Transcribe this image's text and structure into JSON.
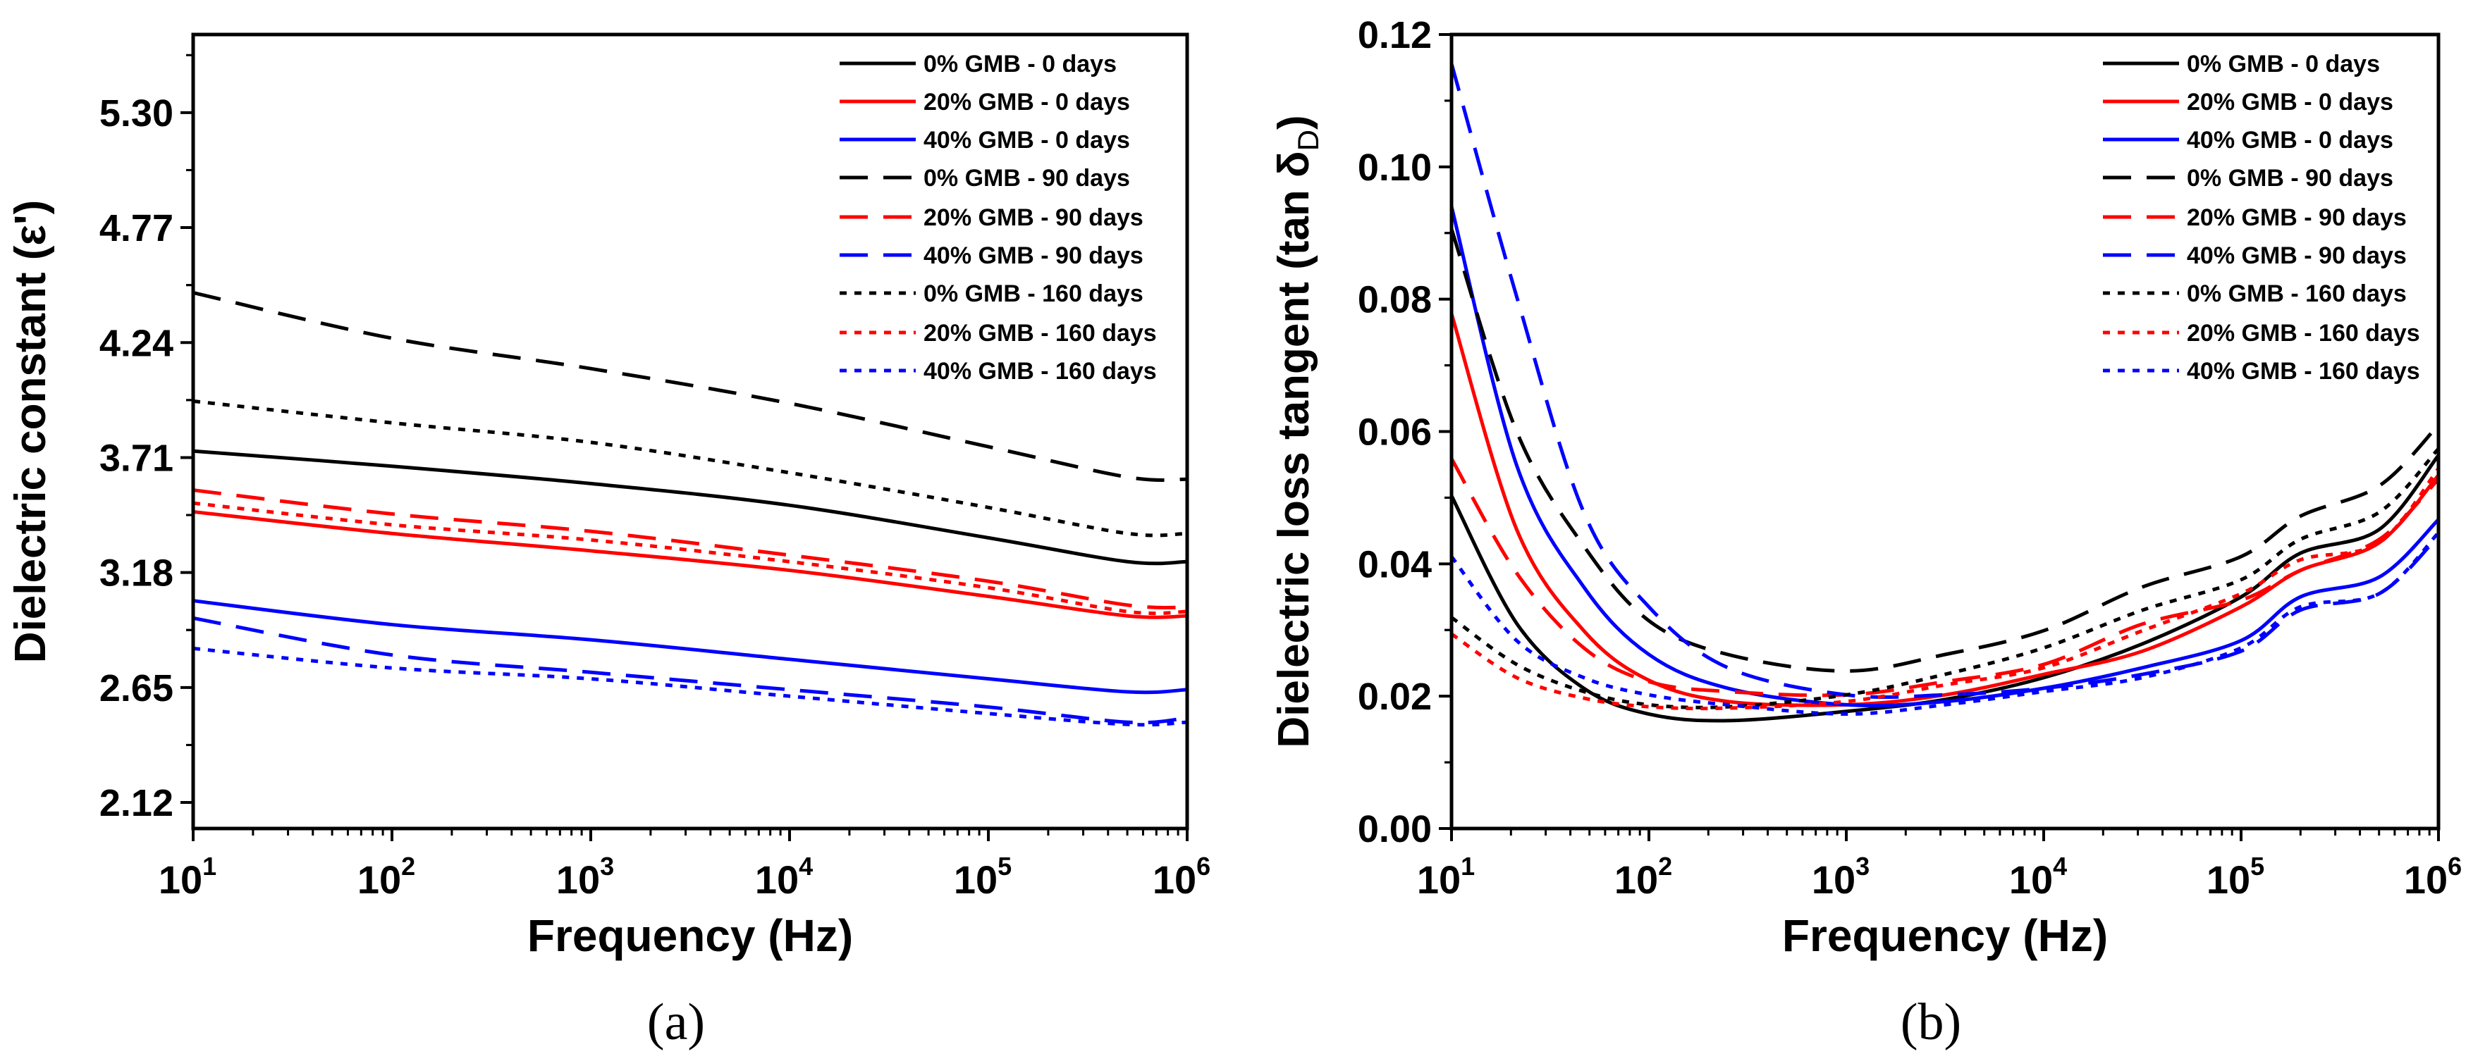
{
  "legend": [
    {
      "label": "0% GMB - 0 days",
      "color": "#000000",
      "style": "solid"
    },
    {
      "label": "20% GMB - 0 days",
      "color": "#ff0000",
      "style": "solid"
    },
    {
      "label": "40% GMB - 0 days",
      "color": "#0000ff",
      "style": "solid"
    },
    {
      "label": "0% GMB - 90 days",
      "color": "#000000",
      "style": "dash"
    },
    {
      "label": "20% GMB - 90 days",
      "color": "#ff0000",
      "style": "dash"
    },
    {
      "label": "40% GMB - 90 days",
      "color": "#0000ff",
      "style": "dash"
    },
    {
      "label": "0% GMB - 160 days",
      "color": "#000000",
      "style": "dot"
    },
    {
      "label": "20% GMB - 160 days",
      "color": "#ff0000",
      "style": "dot"
    },
    {
      "label": "40% GMB - 160 days",
      "color": "#0000ff",
      "style": "dot"
    }
  ],
  "chart_data": [
    {
      "type": "line",
      "panel_label": "(a)",
      "xlabel": "Frequency (Hz)",
      "ylabel": "Dielectric constant (ε')",
      "xscale": "log",
      "xlim": [
        10,
        1000000
      ],
      "xticks": [
        "10",
        "10",
        "10",
        "10",
        "10",
        "10"
      ],
      "xtick_exponents": [
        "1",
        "2",
        "3",
        "4",
        "5",
        "6"
      ],
      "ylim": [
        2.0,
        5.66
      ],
      "yticks": [
        "2.12",
        "2.65",
        "3.18",
        "3.71",
        "4.24",
        "4.77",
        "5.30"
      ],
      "ytick_values": [
        2.12,
        2.65,
        3.18,
        3.71,
        4.24,
        4.77,
        5.3
      ],
      "legend_position": "top-right",
      "log_x": [
        1,
        2,
        3,
        4,
        5,
        5.7,
        6
      ],
      "series": [
        {
          "name": "0% GMB - 0 days",
          "values": [
            3.74,
            3.67,
            3.59,
            3.49,
            3.34,
            3.23,
            3.23
          ]
        },
        {
          "name": "20% GMB - 0 days",
          "values": [
            3.46,
            3.36,
            3.28,
            3.19,
            3.07,
            2.98,
            2.98
          ]
        },
        {
          "name": "40% GMB - 0 days",
          "values": [
            3.05,
            2.94,
            2.87,
            2.78,
            2.69,
            2.63,
            2.64
          ]
        },
        {
          "name": "0% GMB - 90 days",
          "values": [
            4.47,
            4.26,
            4.12,
            3.96,
            3.76,
            3.62,
            3.61
          ]
        },
        {
          "name": "20% GMB - 90 days",
          "values": [
            3.56,
            3.45,
            3.37,
            3.26,
            3.14,
            3.03,
            3.02
          ]
        },
        {
          "name": "40% GMB - 90 days",
          "values": [
            2.97,
            2.8,
            2.72,
            2.64,
            2.56,
            2.49,
            2.51
          ]
        },
        {
          "name": "0% GMB - 160 days",
          "values": [
            3.97,
            3.87,
            3.78,
            3.64,
            3.48,
            3.36,
            3.36
          ]
        },
        {
          "name": "20% GMB - 160 days",
          "values": [
            3.5,
            3.4,
            3.33,
            3.23,
            3.11,
            3.0,
            3.0
          ]
        },
        {
          "name": "40% GMB - 160 days",
          "values": [
            2.83,
            2.74,
            2.69,
            2.61,
            2.53,
            2.48,
            2.49
          ]
        }
      ]
    },
    {
      "type": "line",
      "panel_label": "(b)",
      "xlabel": "Frequency (Hz)",
      "ylabel": "Dielectric loss tangent (tan δ",
      "ylabel_sub": "D",
      "ylabel_end": ")",
      "xscale": "log",
      "xlim": [
        10,
        1000000
      ],
      "xticks": [
        "10",
        "10",
        "10",
        "10",
        "10",
        "10"
      ],
      "xtick_exponents": [
        "1",
        "2",
        "3",
        "4",
        "5",
        "6"
      ],
      "ylim": [
        0,
        0.12
      ],
      "yticks": [
        "0.00",
        "0.02",
        "0.04",
        "0.06",
        "0.08",
        "0.10",
        "0.12"
      ],
      "ytick_values": [
        0,
        0.02,
        0.04,
        0.06,
        0.08,
        0.1,
        0.12
      ],
      "legend_position": "top-right",
      "log_x": [
        1,
        1.33,
        1.67,
        2,
        2.4,
        3,
        3.5,
        4,
        4.5,
        5,
        5.3,
        5.7,
        6
      ],
      "series": [
        {
          "name": "0% GMB - 0 days",
          "values": [
            0.0503,
            0.031,
            0.0212,
            0.0173,
            0.0163,
            0.0177,
            0.0195,
            0.0228,
            0.0279,
            0.035,
            0.0416,
            0.0452,
            0.0564
          ]
        },
        {
          "name": "20% GMB - 0 days",
          "values": [
            0.0778,
            0.0452,
            0.0299,
            0.0224,
            0.0192,
            0.0187,
            0.0202,
            0.0233,
            0.0268,
            0.0335,
            0.039,
            0.0432,
            0.0534
          ]
        },
        {
          "name": "40% GMB - 0 days",
          "values": [
            0.094,
            0.0549,
            0.0365,
            0.0263,
            0.0212,
            0.0187,
            0.0192,
            0.0212,
            0.0243,
            0.0284,
            0.035,
            0.038,
            0.0467
          ]
        },
        {
          "name": "0% GMB - 90 days",
          "values": [
            0.0906,
            0.06,
            0.0427,
            0.0314,
            0.0263,
            0.0238,
            0.0263,
            0.0299,
            0.0365,
            0.0411,
            0.0472,
            0.0518,
            0.061
          ]
        },
        {
          "name": "20% GMB - 90 days",
          "values": [
            0.0559,
            0.0386,
            0.0273,
            0.0222,
            0.0207,
            0.0202,
            0.0222,
            0.0248,
            0.0309,
            0.0345,
            0.039,
            0.0437,
            0.0528
          ]
        },
        {
          "name": "40% GMB - 90 days",
          "values": [
            0.1156,
            0.0804,
            0.0478,
            0.0335,
            0.0243,
            0.0202,
            0.0202,
            0.0212,
            0.0233,
            0.0268,
            0.033,
            0.0355,
            0.0442
          ]
        },
        {
          "name": "0% GMB - 160 days",
          "values": [
            0.0319,
            0.0248,
            0.0207,
            0.0187,
            0.0184,
            0.0202,
            0.0233,
            0.0273,
            0.033,
            0.0376,
            0.0437,
            0.0478,
            0.0574
          ]
        },
        {
          "name": "20% GMB - 160 days",
          "values": [
            0.0294,
            0.0228,
            0.0197,
            0.0184,
            0.0182,
            0.0192,
            0.0217,
            0.0243,
            0.0299,
            0.0355,
            0.0406,
            0.0432,
            0.0544
          ]
        },
        {
          "name": "40% GMB - 160 days",
          "values": [
            0.0411,
            0.0284,
            0.0228,
            0.0202,
            0.0187,
            0.0173,
            0.0187,
            0.0207,
            0.0228,
            0.0273,
            0.0335,
            0.0355,
            0.0447
          ]
        }
      ]
    }
  ]
}
